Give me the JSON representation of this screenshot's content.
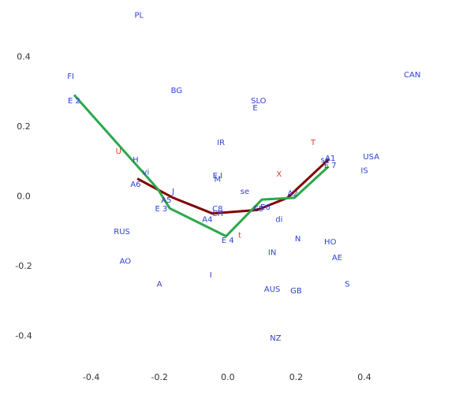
{
  "chart_data": {
    "type": "scatter",
    "title": "",
    "xlabel": "",
    "ylabel": "",
    "xlim": [
      -0.54,
      0.58
    ],
    "ylim": [
      -0.455,
      0.535
    ],
    "xticks": [
      -0.4,
      -0.2,
      0.0,
      0.2,
      0.4
    ],
    "yticks": [
      -0.4,
      -0.2,
      0.0,
      0.2,
      0.4
    ],
    "xtick_labels": [
      "-0.4",
      "-0.2",
      "0.0",
      "0.2",
      "0.4"
    ],
    "ytick_labels": [
      "-0.4",
      "-0.2",
      "0.0",
      "0.2",
      "0.4"
    ],
    "grid": false,
    "colors": {
      "country": "#2f3fd0",
      "variable": "#e04020",
      "line_maroon": "#800000",
      "line_green": "#2ca84a",
      "axis": "#888888"
    },
    "points": [
      {
        "label": "PL",
        "x": -0.26,
        "y": 0.52,
        "kind": "country"
      },
      {
        "label": "FI",
        "x": -0.46,
        "y": 0.345,
        "kind": "country"
      },
      {
        "label": "E 2",
        "x": -0.45,
        "y": 0.275,
        "kind": "country"
      },
      {
        "label": "CAN",
        "x": 0.54,
        "y": 0.35,
        "kind": "country"
      },
      {
        "label": "BG",
        "x": -0.15,
        "y": 0.305,
        "kind": "country"
      },
      {
        "label": "SLO",
        "x": 0.09,
        "y": 0.275,
        "kind": "country"
      },
      {
        "label": "E",
        "x": 0.08,
        "y": 0.255,
        "kind": "country"
      },
      {
        "label": "IR",
        "x": -0.02,
        "y": 0.155,
        "kind": "country"
      },
      {
        "label": "T",
        "x": 0.25,
        "y": 0.155,
        "kind": "variable"
      },
      {
        "label": "U",
        "x": -0.32,
        "y": 0.13,
        "kind": "variable"
      },
      {
        "label": "H",
        "x": -0.27,
        "y": 0.105,
        "kind": "country"
      },
      {
        "label": "USA",
        "x": 0.42,
        "y": 0.115,
        "kind": "country"
      },
      {
        "label": "A1",
        "x": 0.3,
        "y": 0.11,
        "kind": "country"
      },
      {
        "label": "se",
        "x": 0.285,
        "y": 0.105,
        "kind": "country"
      },
      {
        "label": "E 7",
        "x": 0.3,
        "y": 0.09,
        "kind": "country"
      },
      {
        "label": "vi",
        "x": -0.24,
        "y": 0.07,
        "kind": "country"
      },
      {
        "label": "IS",
        "x": 0.4,
        "y": 0.075,
        "kind": "country"
      },
      {
        "label": "X",
        "x": 0.15,
        "y": 0.065,
        "kind": "variable"
      },
      {
        "label": "E I",
        "x": -0.03,
        "y": 0.06,
        "kind": "country"
      },
      {
        "label": "M",
        "x": -0.03,
        "y": 0.05,
        "kind": "country"
      },
      {
        "label": "A6",
        "x": -0.27,
        "y": 0.035,
        "kind": "country"
      },
      {
        "label": "J",
        "x": -0.16,
        "y": 0.015,
        "kind": "country"
      },
      {
        "label": "se",
        "x": 0.05,
        "y": 0.015,
        "kind": "country"
      },
      {
        "label": "A2",
        "x": 0.19,
        "y": 0.01,
        "kind": "country"
      },
      {
        "label": "A5",
        "x": -0.18,
        "y": -0.01,
        "kind": "country"
      },
      {
        "label": "E 3",
        "x": -0.195,
        "y": -0.035,
        "kind": "country"
      },
      {
        "label": "E5",
        "x": 0.09,
        "y": -0.035,
        "kind": "country"
      },
      {
        "label": "E6",
        "x": 0.11,
        "y": -0.03,
        "kind": "country"
      },
      {
        "label": "C8",
        "x": -0.03,
        "y": -0.035,
        "kind": "country"
      },
      {
        "label": "CH",
        "x": -0.03,
        "y": -0.048,
        "kind": "country"
      },
      {
        "label": "A4",
        "x": -0.06,
        "y": -0.065,
        "kind": "country"
      },
      {
        "label": "di",
        "x": 0.15,
        "y": -0.065,
        "kind": "country"
      },
      {
        "label": "RUS",
        "x": -0.31,
        "y": -0.1,
        "kind": "country"
      },
      {
        "label": "t",
        "x": 0.035,
        "y": -0.11,
        "kind": "variable"
      },
      {
        "label": "N",
        "x": 0.205,
        "y": -0.12,
        "kind": "country"
      },
      {
        "label": "E 4",
        "x": 0.0,
        "y": -0.125,
        "kind": "country"
      },
      {
        "label": "HO",
        "x": 0.3,
        "y": -0.13,
        "kind": "country"
      },
      {
        "label": "IN",
        "x": 0.13,
        "y": -0.16,
        "kind": "country"
      },
      {
        "label": "AE",
        "x": 0.32,
        "y": -0.175,
        "kind": "country"
      },
      {
        "label": "AO",
        "x": -0.3,
        "y": -0.185,
        "kind": "country"
      },
      {
        "label": "I",
        "x": -0.05,
        "y": -0.225,
        "kind": "country"
      },
      {
        "label": "A",
        "x": -0.2,
        "y": -0.25,
        "kind": "country"
      },
      {
        "label": "S",
        "x": 0.35,
        "y": -0.25,
        "kind": "country"
      },
      {
        "label": "AUS",
        "x": 0.13,
        "y": -0.265,
        "kind": "country"
      },
      {
        "label": "GB",
        "x": 0.2,
        "y": -0.27,
        "kind": "country"
      },
      {
        "label": "NZ",
        "x": 0.14,
        "y": -0.405,
        "kind": "country"
      }
    ],
    "series": [
      {
        "color": "#800000",
        "x": [
          -0.265,
          -0.16,
          -0.045,
          0.085,
          0.175,
          0.295
        ],
        "y": [
          0.05,
          -0.005,
          -0.05,
          -0.04,
          -0.005,
          0.105
        ]
      },
      {
        "color": "#2ca84a",
        "x": [
          -0.45,
          -0.205,
          -0.17,
          -0.005,
          0.1,
          0.195,
          0.295
        ],
        "y": [
          0.29,
          0.02,
          -0.035,
          -0.115,
          -0.01,
          -0.005,
          0.085
        ]
      }
    ]
  }
}
